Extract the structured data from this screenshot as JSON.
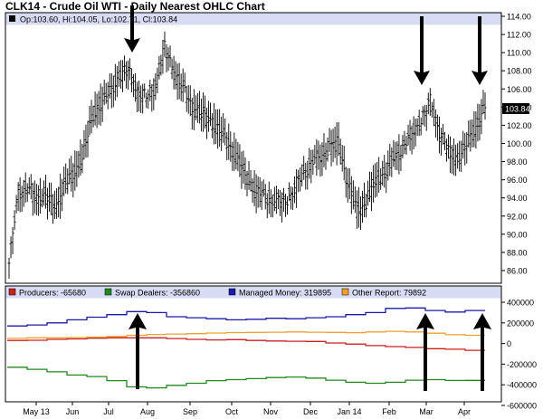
{
  "title": "CLK14 - Crude Oil WTI - Daily Nearest OHLC Chart",
  "colors": {
    "header_band": "#d8dcf2",
    "bars": "#000000",
    "last_label_bg": "#000000",
    "last_label_fg": "#ffffff",
    "arrow": "#000000"
  },
  "chart_data": [
    {
      "type": "ohlc",
      "legend": "Op:103.60, Hi:104.05, Lo:102.71, Cl:103.84",
      "last_price_label": "103.84",
      "ylim": [
        85,
        114
      ],
      "ytick_labels": [
        "86.00",
        "88.00",
        "90.00",
        "92.00",
        "94.00",
        "96.00",
        "98.00",
        "100.00",
        "102.00",
        "104.00",
        "106.00",
        "108.00",
        "110.00",
        "112.00",
        "114.00"
      ],
      "grid": false,
      "close_path": {
        "weeks": [
          0,
          1,
          2,
          3,
          4,
          5,
          6,
          7,
          8,
          9,
          10,
          11,
          12,
          13,
          14,
          15,
          16,
          17,
          18,
          19,
          20,
          21,
          22,
          23,
          24,
          25,
          26,
          27,
          28,
          29,
          30,
          31,
          32,
          33,
          34,
          35,
          36,
          37,
          38,
          39,
          40,
          41,
          42,
          43,
          44,
          45,
          46,
          47,
          48,
          49,
          50,
          51,
          52
        ],
        "values": [
          86.8,
          94.5,
          95.2,
          93.8,
          94.5,
          92.5,
          95.5,
          96.3,
          98.5,
          102.5,
          104.5,
          105.5,
          107.5,
          108.0,
          105.8,
          105.0,
          106.5,
          110.5,
          108.0,
          106.0,
          104.0,
          103.2,
          102.5,
          101.3,
          100.0,
          98.0,
          96.3,
          94.6,
          94.3,
          93.6,
          93.8,
          94.5,
          96.6,
          97.8,
          98.5,
          99.5,
          100.0,
          95.5,
          92.5,
          93.5,
          95.8,
          96.7,
          98.3,
          99.6,
          101.0,
          102.7,
          104.5,
          101.5,
          99.0,
          98.3,
          99.8,
          101.8,
          103.8
        ]
      },
      "annotation_arrows": 4
    },
    {
      "type": "line",
      "ylim": [
        -600000,
        400000
      ],
      "ytick_labels": [
        "-600000",
        "-400000",
        "-200000",
        "0",
        "200000",
        "400000"
      ],
      "series": [
        {
          "name": "Producers",
          "legend": "Producers: -65680",
          "color": "#cc2020",
          "values": [
            30000,
            32000,
            40000,
            45000,
            52000,
            55000,
            55000,
            55000,
            48000,
            40000,
            35000,
            38000,
            30000,
            25000,
            22000,
            20000,
            5000,
            -5000,
            -20000,
            -30000,
            -38000,
            -50000,
            -55000,
            -65680
          ]
        },
        {
          "name": "Swap Dealers",
          "legend": "Swap Dealers: -356860",
          "color": "#228822",
          "values": [
            -230000,
            -250000,
            -275000,
            -305000,
            -320000,
            -360000,
            -420000,
            -430000,
            -405000,
            -385000,
            -360000,
            -350000,
            -340000,
            -330000,
            -325000,
            -335000,
            -355000,
            -375000,
            -385000,
            -375000,
            -355000,
            -350000,
            -358000,
            -356860
          ]
        },
        {
          "name": "Managed Money",
          "legend": "Managed Money: 319895",
          "color": "#1c1caa",
          "values": [
            170000,
            180000,
            200000,
            230000,
            255000,
            280000,
            310000,
            300000,
            260000,
            250000,
            240000,
            230000,
            235000,
            245000,
            240000,
            250000,
            260000,
            280000,
            300000,
            340000,
            345000,
            320000,
            305000,
            319895
          ]
        },
        {
          "name": "Other Report",
          "legend": "Other Report: 79892",
          "color": "#f0a030",
          "values": [
            50000,
            55000,
            55000,
            58000,
            62000,
            68000,
            80000,
            88000,
            92000,
            96000,
            102000,
            106000,
            108000,
            110000,
            112000,
            110000,
            108000,
            105000,
            112000,
            118000,
            112000,
            100000,
            85000,
            79892
          ]
        }
      ],
      "annotation_arrows": 3
    }
  ],
  "x_axis": {
    "tick_labels": [
      "May 13",
      "Jun",
      "Jul",
      "Aug",
      "Sep",
      "Oct",
      "Nov",
      "Dec",
      "Jan 14",
      "Feb",
      "Mar",
      "Apr"
    ]
  }
}
